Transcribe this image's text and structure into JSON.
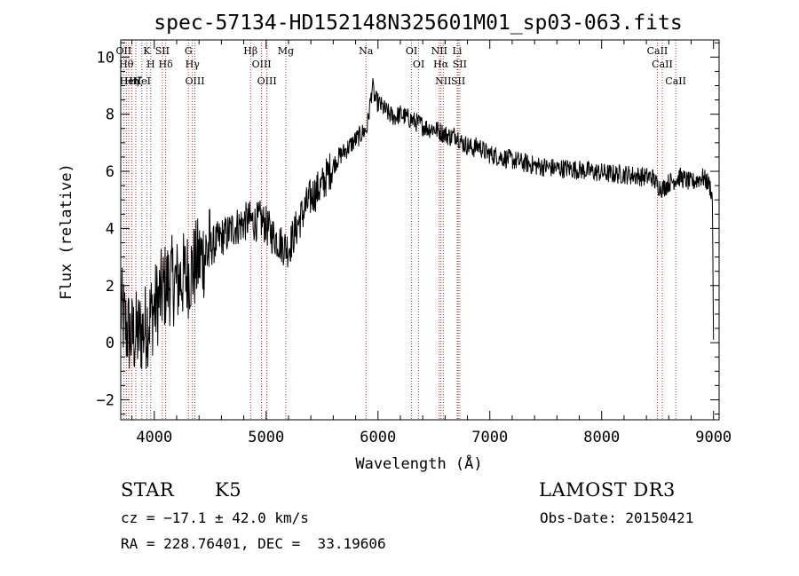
{
  "chart_data": {
    "type": "line",
    "title": "spec-57134-HD152148N325601M01_sp03-063.fits",
    "xlabel": "Wavelength (Å)",
    "ylabel": "Flux (relative)",
    "xlim": [
      3700,
      9050
    ],
    "ylim": [
      -2.7,
      10.6
    ],
    "xticks": [
      4000,
      5000,
      6000,
      7000,
      8000,
      9000
    ],
    "yticks": [
      -2,
      0,
      2,
      4,
      6,
      8,
      10
    ],
    "series": [
      {
        "name": "flux",
        "x": [
          3700,
          3750,
          3800,
          3850,
          3900,
          3950,
          4000,
          4050,
          4100,
          4150,
          4200,
          4250,
          4300,
          4350,
          4400,
          4450,
          4500,
          4550,
          4600,
          4650,
          4700,
          4750,
          4800,
          4850,
          4900,
          4950,
          5000,
          5050,
          5100,
          5150,
          5200,
          5250,
          5300,
          5350,
          5400,
          5450,
          5500,
          5550,
          5600,
          5650,
          5700,
          5750,
          5800,
          5850,
          5900,
          5925,
          5950,
          5975,
          6000,
          6050,
          6100,
          6150,
          6200,
          6250,
          6300,
          6350,
          6400,
          6450,
          6500,
          6550,
          6600,
          6650,
          6700,
          6750,
          6800,
          6850,
          6900,
          6950,
          7000,
          7100,
          7200,
          7300,
          7400,
          7500,
          7600,
          7700,
          7800,
          7900,
          8000,
          8100,
          8200,
          8300,
          8400,
          8450,
          8500,
          8550,
          8600,
          8650,
          8700,
          8750,
          8800,
          8850,
          8900,
          8950,
          8975,
          8990,
          9000
        ],
        "y": [
          1.2,
          0.5,
          0.2,
          0.3,
          0.4,
          0.8,
          1.2,
          1.6,
          2.0,
          2.2,
          2.1,
          2.3,
          2.4,
          2.6,
          2.9,
          3.1,
          3.3,
          3.5,
          3.7,
          3.8,
          4.0,
          4.1,
          4.2,
          4.3,
          4.2,
          4.3,
          4.1,
          3.8,
          3.6,
          3.4,
          3.3,
          3.8,
          4.3,
          4.7,
          5.1,
          5.3,
          5.5,
          5.9,
          6.2,
          6.5,
          6.7,
          6.9,
          7.1,
          7.3,
          7.5,
          8.2,
          9.0,
          8.5,
          8.4,
          8.2,
          8.0,
          7.9,
          8.0,
          7.9,
          7.8,
          7.7,
          7.6,
          7.5,
          7.5,
          7.4,
          7.3,
          7.2,
          7.3,
          7.0,
          6.9,
          6.8,
          6.9,
          6.7,
          6.6,
          6.5,
          6.4,
          6.3,
          6.2,
          6.15,
          6.1,
          6.1,
          6.05,
          6.0,
          5.95,
          5.9,
          5.9,
          5.85,
          5.8,
          5.8,
          5.5,
          5.4,
          5.6,
          5.7,
          5.8,
          5.7,
          5.6,
          5.7,
          5.8,
          5.6,
          5.4,
          5.0,
          0.1
        ]
      }
    ],
    "lines": [
      {
        "wave": 3727,
        "labels": [
          "OII"
        ]
      },
      {
        "wave": 3750,
        "labels": [
          "Hθ"
        ]
      },
      {
        "wave": 3771,
        "labels": [
          "HeI"
        ]
      },
      {
        "wave": 3798,
        "labels": [
          "Hη"
        ]
      },
      {
        "wave": 3835,
        "labels": [
          "Hζ"
        ]
      },
      {
        "wave": 3889,
        "labels": [
          "HeI"
        ]
      },
      {
        "wave": 3933,
        "labels": [
          "K"
        ]
      },
      {
        "wave": 3968,
        "labels": [
          "H"
        ]
      },
      {
        "wave": 4072,
        "labels": [
          "SII"
        ]
      },
      {
        "wave": 4102,
        "labels": [
          "Hδ"
        ]
      },
      {
        "wave": 4305,
        "labels": [
          "G"
        ]
      },
      {
        "wave": 4341,
        "labels": [
          "Hγ"
        ]
      },
      {
        "wave": 4363,
        "labels": [
          "OIII"
        ]
      },
      {
        "wave": 4861,
        "labels": [
          "Hβ"
        ]
      },
      {
        "wave": 4959,
        "labels": [
          "OIII"
        ]
      },
      {
        "wave": 5007,
        "labels": [
          "OIII"
        ]
      },
      {
        "wave": 5176,
        "labels": [
          "Mg"
        ]
      },
      {
        "wave": 5893,
        "labels": [
          "Na"
        ]
      },
      {
        "wave": 6300,
        "labels": [
          "OI"
        ]
      },
      {
        "wave": 6364,
        "labels": [
          "OI"
        ]
      },
      {
        "wave": 6548,
        "labels": [
          "NII"
        ]
      },
      {
        "wave": 6563,
        "labels": [
          "Hα"
        ]
      },
      {
        "wave": 6584,
        "labels": [
          "NII"
        ]
      },
      {
        "wave": 6708,
        "labels": [
          "Li"
        ]
      },
      {
        "wave": 6717,
        "labels": [
          "SII"
        ]
      },
      {
        "wave": 6731,
        "labels": [
          "SII"
        ]
      },
      {
        "wave": 8498,
        "labels": [
          "CaII"
        ]
      },
      {
        "wave": 8542,
        "labels": [
          "CaII"
        ]
      },
      {
        "wave": 8662,
        "labels": [
          "CaII"
        ]
      }
    ],
    "line_color": "#b03030"
  },
  "info": {
    "class": "STAR",
    "subclass": "K5",
    "survey": "LAMOST DR3",
    "cz": "cz = −17.1 ± 42.0 km/s",
    "obs_date": "Obs-Date: 20150421",
    "coords": "RA = 228.76401, DEC =  33.19606"
  }
}
